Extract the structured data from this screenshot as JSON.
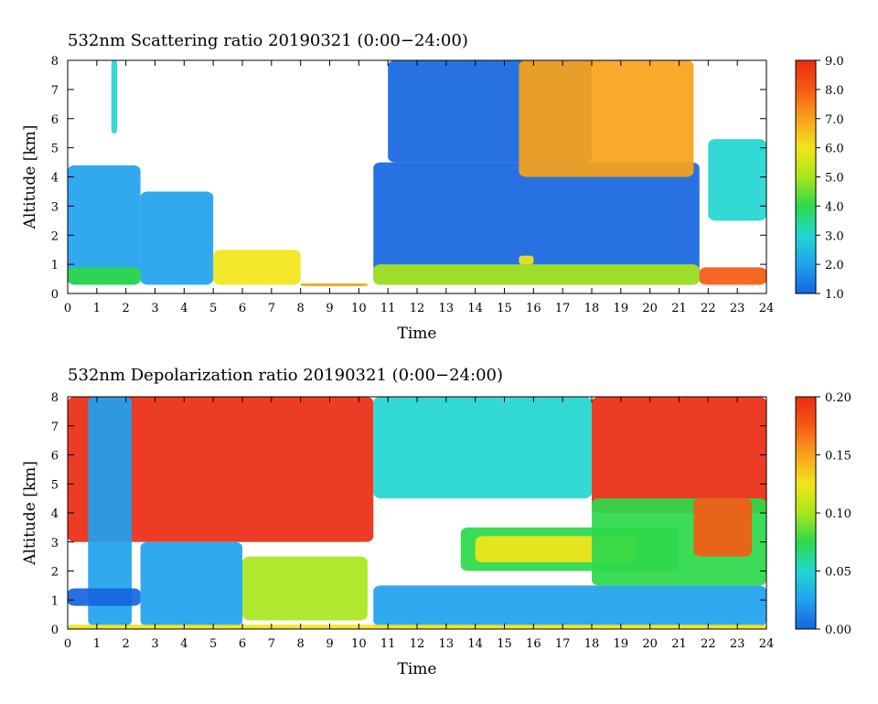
{
  "chart_data": [
    {
      "type": "heatmap",
      "title": "532nm Scattering ratio  20190321 (0:00−24:00)",
      "xlabel": "Time",
      "ylabel": "Altitude [km]",
      "xlim": [
        0,
        24
      ],
      "ylim": [
        0,
        8
      ],
      "x_ticks": [
        "0",
        "1",
        "2",
        "3",
        "4",
        "5",
        "6",
        "7",
        "8",
        "9",
        "10",
        "11",
        "12",
        "13",
        "14",
        "15",
        "16",
        "17",
        "18",
        "19",
        "20",
        "21",
        "22",
        "23",
        "24"
      ],
      "y_ticks": [
        "0",
        "1",
        "2",
        "3",
        "4",
        "5",
        "6",
        "7",
        "8"
      ],
      "colorbar": {
        "range": [
          1.0,
          9.0
        ],
        "ticks": [
          "1.0",
          "2.0",
          "3.0",
          "4.0",
          "5.0",
          "6.0",
          "7.0",
          "8.0",
          "9.0"
        ],
        "colors": [
          "#1565e0",
          "#1fa2ee",
          "#22d6d0",
          "#2dd94a",
          "#a8e61c",
          "#f2e51a",
          "#f9a21a",
          "#f55a14",
          "#ec2b12"
        ]
      },
      "features": [
        {
          "time": [
            0,
            2.5
          ],
          "altitude": [
            0.3,
            4.4
          ],
          "value": 2.0
        },
        {
          "time": [
            0,
            2.5
          ],
          "altitude": [
            0.3,
            0.9
          ],
          "value": 4.5
        },
        {
          "time": [
            1.5,
            1.7
          ],
          "altitude": [
            5.5,
            8.0
          ],
          "value": 3.0
        },
        {
          "time": [
            2.5,
            5.0
          ],
          "altitude": [
            0.3,
            3.5
          ],
          "value": 2.2
        },
        {
          "time": [
            5.0,
            8.0
          ],
          "altitude": [
            0.3,
            1.5
          ],
          "value": 5.5
        },
        {
          "time": [
            8.0,
            10.3
          ],
          "altitude": [
            0.25,
            0.35
          ],
          "value": 7.0
        },
        {
          "time": [
            10.5,
            21.7
          ],
          "altitude": [
            0.3,
            4.5
          ],
          "value": 1.8
        },
        {
          "time": [
            10.5,
            21.7
          ],
          "altitude": [
            0.3,
            1.0
          ],
          "value": 4.8
        },
        {
          "time": [
            15.5,
            16.0
          ],
          "altitude": [
            1.0,
            1.3
          ],
          "value": 6.0
        },
        {
          "time": [
            11.0,
            18.0
          ],
          "altitude": [
            4.5,
            8.0
          ],
          "value": 1.4
        },
        {
          "time": [
            15.5,
            21.5
          ],
          "altitude": [
            4.0,
            8.0
          ],
          "value": 6.5
        },
        {
          "time": [
            21.7,
            24
          ],
          "altitude": [
            0.3,
            0.9
          ],
          "value": 7.5
        },
        {
          "time": [
            22.0,
            24
          ],
          "altitude": [
            2.5,
            5.3
          ],
          "value": 3.5
        }
      ]
    },
    {
      "type": "heatmap",
      "title": "532nm Depolarization ratio  20190321 (0:00−24:00)",
      "xlabel": "Time",
      "ylabel": "Altitude [km]",
      "xlim": [
        0,
        24
      ],
      "ylim": [
        0,
        8
      ],
      "x_ticks": [
        "0",
        "1",
        "2",
        "3",
        "4",
        "5",
        "6",
        "7",
        "8",
        "9",
        "10",
        "11",
        "12",
        "13",
        "14",
        "15",
        "16",
        "17",
        "18",
        "19",
        "20",
        "21",
        "22",
        "23",
        "24"
      ],
      "y_ticks": [
        "0",
        "1",
        "2",
        "3",
        "4",
        "5",
        "6",
        "7",
        "8"
      ],
      "colorbar": {
        "range": [
          0.0,
          0.2
        ],
        "ticks": [
          "0.00",
          "0.05",
          "0.10",
          "0.15",
          "0.20"
        ],
        "colors": [
          "#1565e0",
          "#1fa2ee",
          "#22d6d0",
          "#2dd94a",
          "#a8e61c",
          "#f2e51a",
          "#f9a21a",
          "#f55a14",
          "#ec2b12"
        ]
      },
      "features": [
        {
          "time": [
            0,
            10.5
          ],
          "altitude": [
            3.0,
            8.0
          ],
          "value": 0.19
        },
        {
          "time": [
            0.7,
            2.2
          ],
          "altitude": [
            0.1,
            8.0
          ],
          "value": 0.03
        },
        {
          "time": [
            0,
            2.5
          ],
          "altitude": [
            0.8,
            1.4
          ],
          "value": 0.02
        },
        {
          "time": [
            2.5,
            6.0
          ],
          "altitude": [
            0.1,
            3.0
          ],
          "value": 0.04
        },
        {
          "time": [
            6.0,
            10.3
          ],
          "altitude": [
            0.3,
            2.5
          ],
          "value": 0.09
        },
        {
          "time": [
            10.5,
            24
          ],
          "altitude": [
            0.1,
            1.5
          ],
          "value": 0.04
        },
        {
          "time": [
            10.5,
            18.0
          ],
          "altitude": [
            4.5,
            8.0
          ],
          "value": 0.06
        },
        {
          "time": [
            13.5,
            21.0
          ],
          "altitude": [
            2.0,
            3.5
          ],
          "value": 0.08
        },
        {
          "time": [
            14.0,
            19.5
          ],
          "altitude": [
            2.3,
            3.2
          ],
          "value": 0.12
        },
        {
          "time": [
            18.0,
            24
          ],
          "altitude": [
            4.0,
            8.0
          ],
          "value": 0.19
        },
        {
          "time": [
            18.0,
            24
          ],
          "altitude": [
            1.5,
            4.5
          ],
          "value": 0.08
        },
        {
          "time": [
            21.5,
            23.5
          ],
          "altitude": [
            2.5,
            4.5
          ],
          "value": 0.17
        },
        {
          "time": [
            0,
            24
          ],
          "altitude": [
            0.0,
            0.15
          ],
          "value": 0.13
        }
      ]
    }
  ]
}
